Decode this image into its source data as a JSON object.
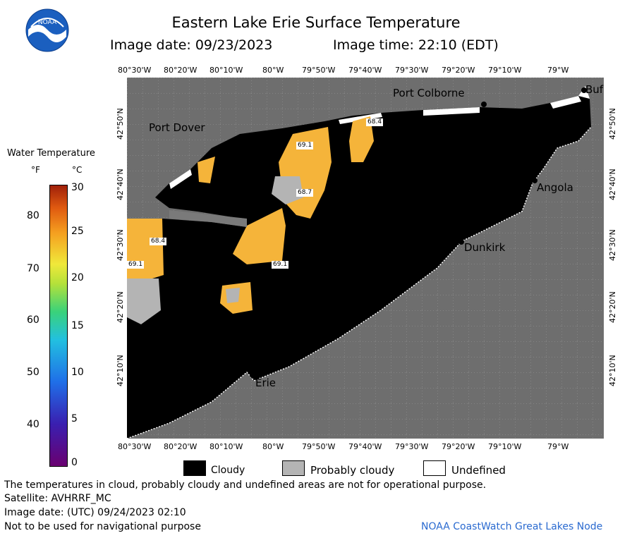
{
  "header": {
    "title": "Eastern Lake Erie Surface Temperature",
    "image_date": "Image date: 09/23/2023",
    "image_time": "Image time: 22:10 (EDT)"
  },
  "logo": {
    "text": "NOAA",
    "icon": "noaa-logo-icon"
  },
  "axes": {
    "lon_labels": [
      "80°30'W",
      "80°20'W",
      "80°10'W",
      "80°W",
      "79°50'W",
      "79°40'W",
      "79°30'W",
      "79°20'W",
      "79°10'W",
      "79°W"
    ],
    "lat_labels": [
      "42°50'N",
      "42°40'N",
      "42°30'N",
      "42°20'N",
      "42°10'N"
    ]
  },
  "colorbar": {
    "title": "Water Temperature",
    "unit_f": "°F",
    "unit_c": "°C",
    "f_ticks": [
      "80",
      "70",
      "60",
      "50",
      "40"
    ],
    "c_ticks": [
      "30",
      "25",
      "20",
      "15",
      "10",
      "5",
      "0"
    ],
    "colors": [
      "#6a0070",
      "#3a1fb0",
      "#1f6fe8",
      "#22c0e0",
      "#3ad27a",
      "#b4e13a",
      "#f0e83a",
      "#f5a020",
      "#e05a10",
      "#a0200a"
    ]
  },
  "places": {
    "port_colborne": "Port Colborne",
    "port_dover": "Port Dover",
    "angola": "Angola",
    "dunkirk": "Dunkirk",
    "erie": "Erie",
    "buffalo": "Buf"
  },
  "temp_labels": {
    "t1": "68.4",
    "t2": "69.1",
    "t3": "68.7",
    "t4": "68.4",
    "t5": "69.1",
    "t6": "69.1"
  },
  "map_legend": {
    "cloudy": "Cloudy",
    "probably_cloudy": "Probably cloudy",
    "undefined": "Undefined"
  },
  "footer": {
    "disclaimer": "The temperatures in cloud, probably cloudy and undefined areas are not for operational purpose.",
    "satellite": "Satellite: AVHRRF_MC",
    "image_date_utc": "Image date: (UTC) 09/24/2023  02:10",
    "nav_warning": "Not to be used for navigational purpose",
    "credit": "NOAA CoastWatch Great Lakes Node"
  },
  "colors": {
    "land": "#6e6e6e",
    "cloud": "#000000",
    "warm_water": "#f5b43a",
    "probably_cloudy": "#b4b4b4",
    "credit": "#2a6ad0"
  }
}
